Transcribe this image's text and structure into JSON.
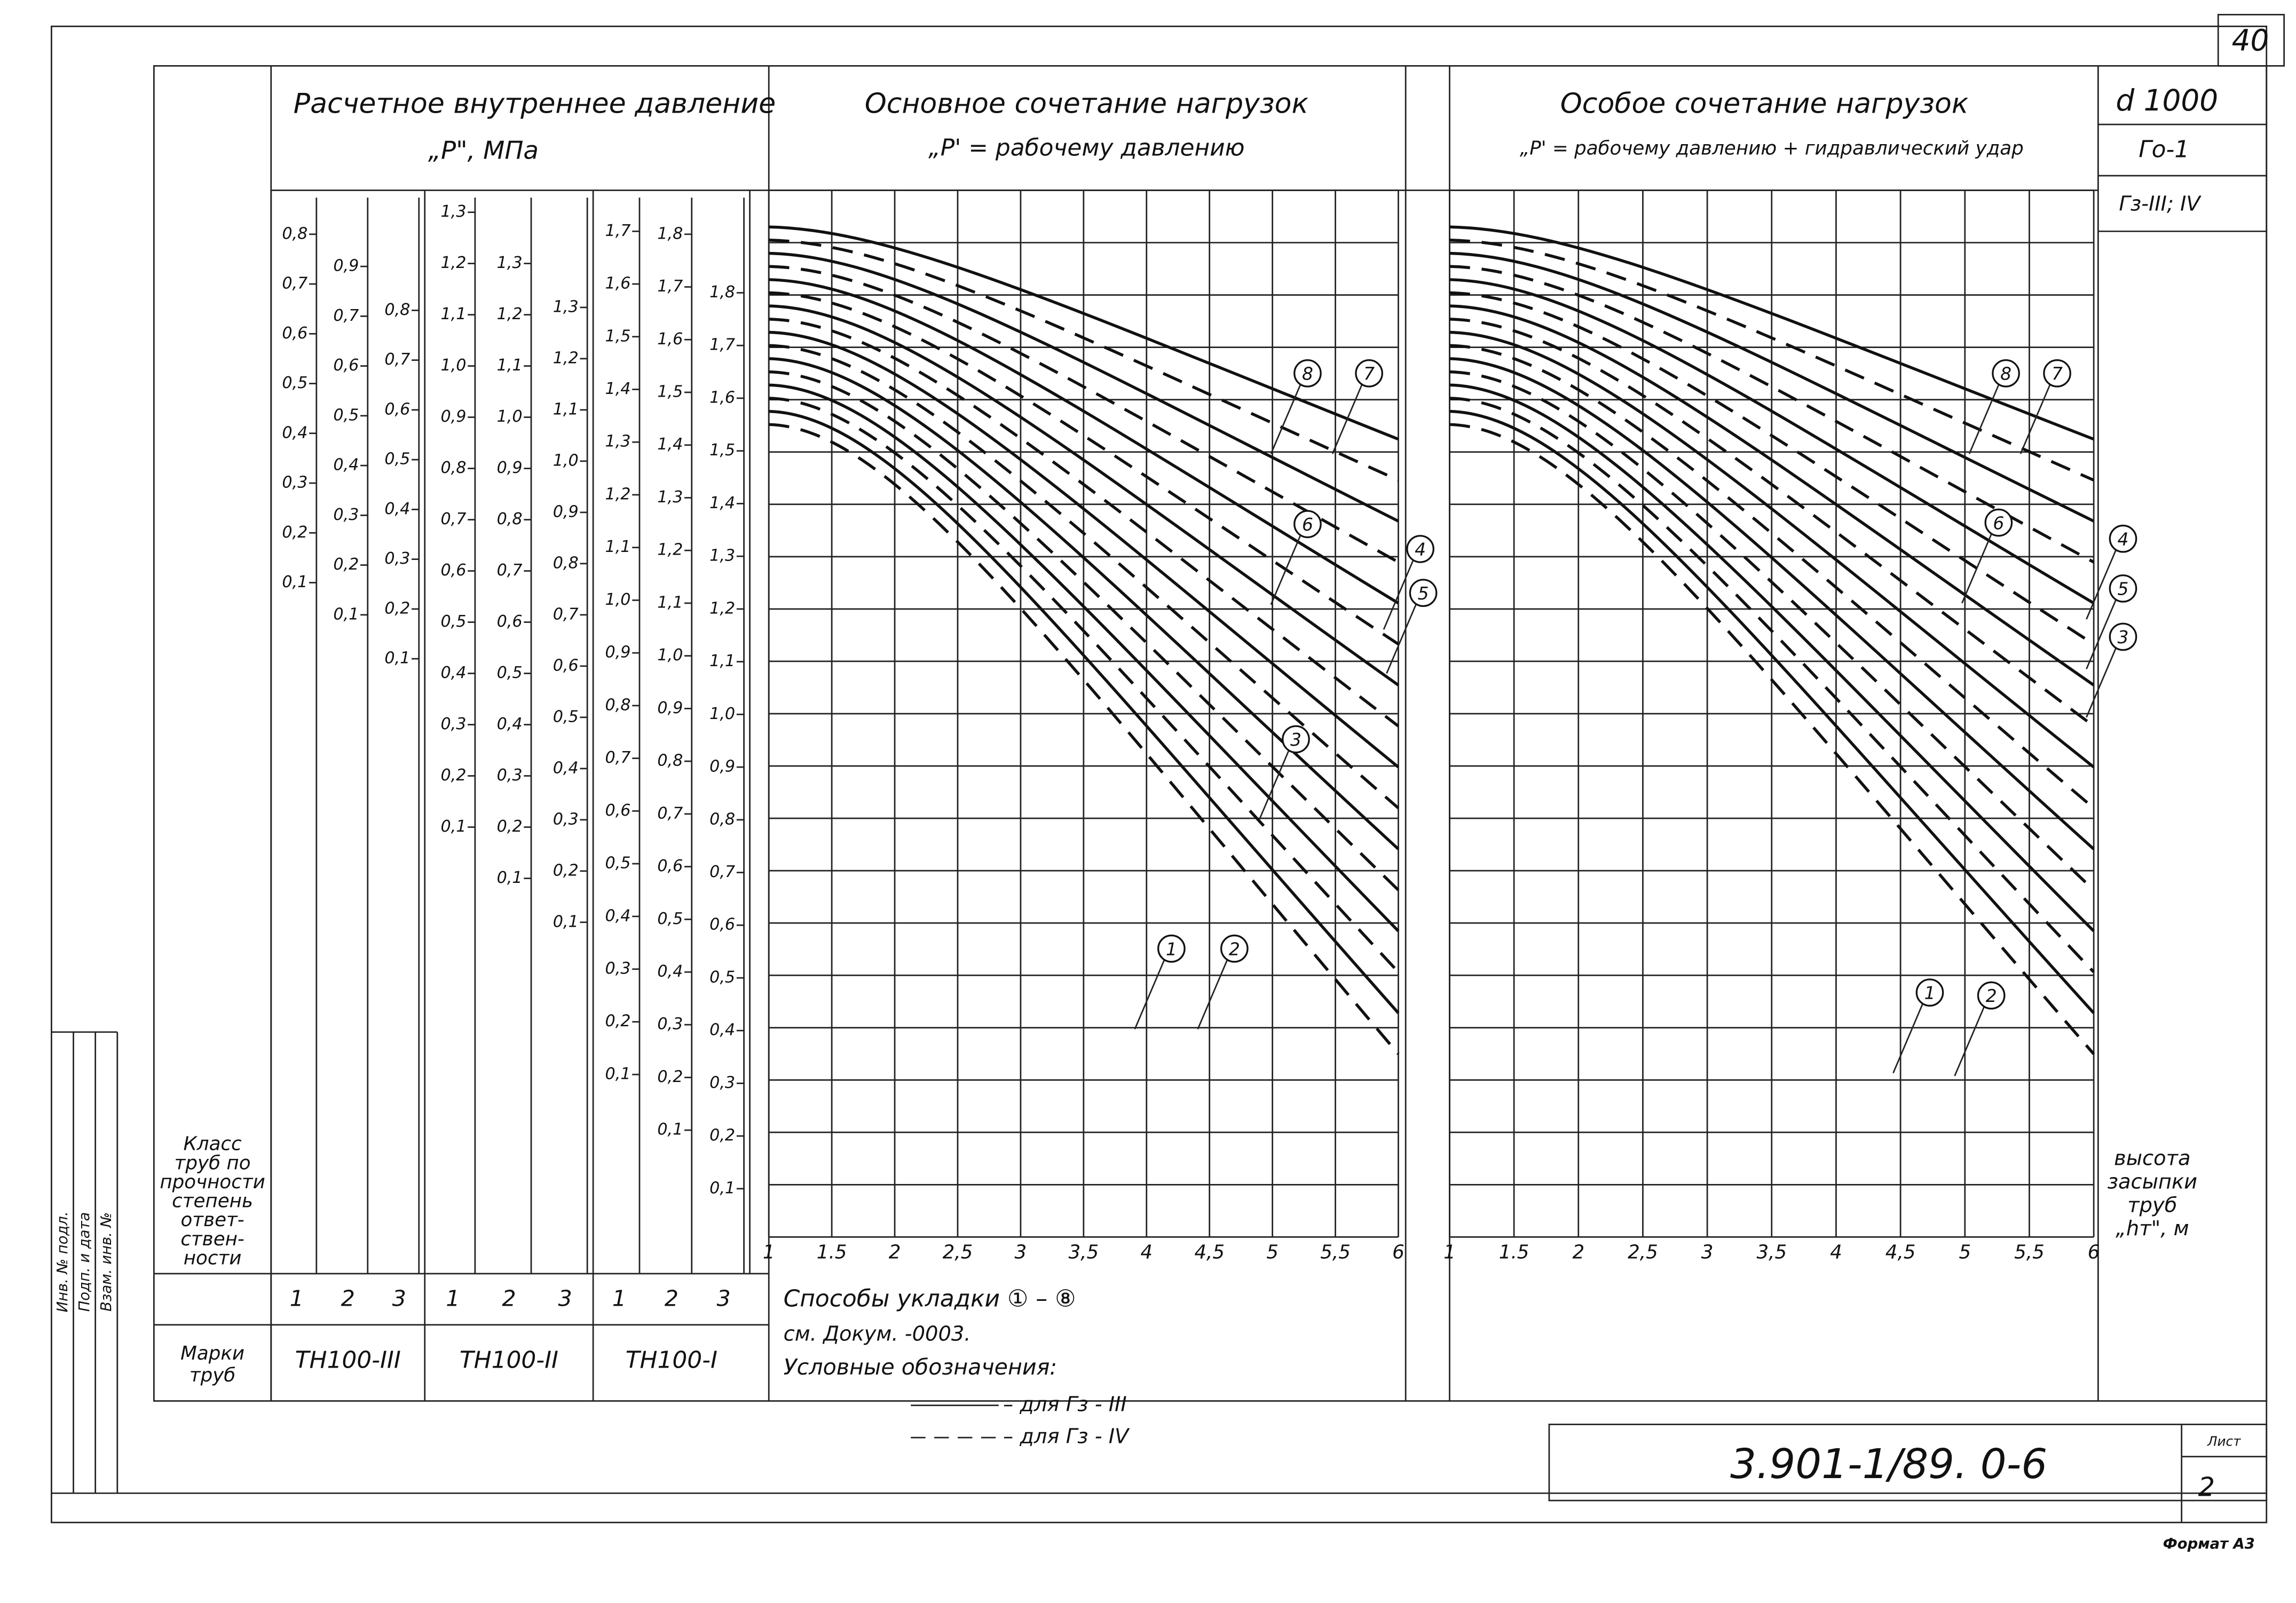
{
  "corner_sheet": "40",
  "pressure_header": {
    "title": "Расчетное внутреннее давление",
    "unit": "„P\", МПа"
  },
  "row_labels": {
    "class": [
      "Класс",
      "труб по",
      "прочности",
      "степень",
      "ответ-",
      "ствен-",
      "ности"
    ],
    "marks": [
      "Марки",
      "труб"
    ]
  },
  "groups": [
    {
      "mark": "ТН100-III",
      "classes": [
        "1",
        "2",
        "3"
      ],
      "scales": [
        [
          "0,8",
          "0,7",
          "0,6",
          "0,5",
          "0,4",
          "0,3",
          "0,2",
          "0,1"
        ],
        [
          "0,9",
          "0,7",
          "0,6",
          "0,5",
          "0,4",
          "0,3",
          "0,2",
          "0,1"
        ],
        [
          "0,8",
          "0,7",
          "0,6",
          "0,5",
          "0,4",
          "0,3",
          "0,2",
          "0,1"
        ]
      ]
    },
    {
      "mark": "ТН100-II",
      "classes": [
        "1",
        "2",
        "3"
      ],
      "scales": [
        [
          "1,3",
          "1,2",
          "1,1",
          "1,0",
          "0,9",
          "0,8",
          "0,7",
          "0,6",
          "0,5",
          "0,4",
          "0,3",
          "0,2",
          "0,1"
        ],
        [
          "1,3",
          "1,2",
          "1,1",
          "1,0",
          "0,9",
          "0,8",
          "0,7",
          "0,6",
          "0,5",
          "0,4",
          "0,3",
          "0,2",
          "0,1"
        ],
        [
          "1,3",
          "1,2",
          "1,1",
          "1,0",
          "0,9",
          "0,8",
          "0,7",
          "0,6",
          "0,5",
          "0,4",
          "0,3",
          "0,2",
          "0,1"
        ]
      ]
    },
    {
      "mark": "ТН100-I",
      "classes": [
        "1",
        "2",
        "3"
      ],
      "scales": [
        [
          "1,7",
          "1,6",
          "1,5",
          "1,4",
          "1,3",
          "1,2",
          "1,1",
          "1,0",
          "0,9",
          "0,8",
          "0,7",
          "0,6",
          "0,5",
          "0,4",
          "0,3",
          "0,2",
          "0,1"
        ],
        [
          "1,8",
          "1,7",
          "1,6",
          "1,5",
          "1,4",
          "1,3",
          "1,2",
          "1,1",
          "1,0",
          "0,9",
          "0,8",
          "0,7",
          "0,6",
          "0,5",
          "0,4",
          "0,3",
          "0,2",
          "0,1"
        ],
        [
          "1,8",
          "1,7",
          "1,6",
          "1,5",
          "1,4",
          "1,3",
          "1,2",
          "1,1",
          "1,0",
          "0,9",
          "0,8",
          "0,7",
          "0,6",
          "0,5",
          "0,4",
          "0,3",
          "0,2",
          "0,1"
        ]
      ]
    }
  ],
  "chart1": {
    "title": "Основное сочетание нагрузок",
    "subtitle": "„P' = рабочему давлению",
    "x_labels": [
      "1",
      "1.5",
      "2",
      "2,5",
      "3",
      "3,5",
      "4",
      "4,5",
      "5",
      "5,5",
      "6"
    ],
    "markers": [
      "8",
      "7",
      "6",
      "4",
      "5",
      "3",
      "1",
      "2"
    ]
  },
  "chart2": {
    "title": "Особое сочетание нагрузок",
    "subtitle": "„P' = рабочему давлению + гидравлический удар",
    "x_labels": [
      "1",
      "1.5",
      "2",
      "2,5",
      "3",
      "3,5",
      "4",
      "4,5",
      "5",
      "5,5",
      "6"
    ],
    "markers": [
      "8",
      "7",
      "6",
      "4",
      "5",
      "3",
      "1",
      "2"
    ]
  },
  "side": {
    "diameter": "d 1000",
    "base": "Го-1",
    "fill": "Гз-III; IV",
    "axis_label": [
      "высота",
      "засыпки",
      "труб",
      "„hт\", м"
    ]
  },
  "notes": {
    "methods": "Способы укладки ① – ⑧",
    "ref": "см. Докум. -0003.",
    "legend_title": "Условные обозначения:",
    "legend": [
      "– для Гз - III",
      "– для Гз - IV"
    ]
  },
  "title_block": {
    "code": "3.901-1/89. 0-6",
    "sheet_label": "Лист",
    "sheet": "2"
  },
  "format": "Формат А3",
  "stamp": [
    "Инв. № подл.",
    "Подп. и дата",
    "Взам. инв. №"
  ]
}
